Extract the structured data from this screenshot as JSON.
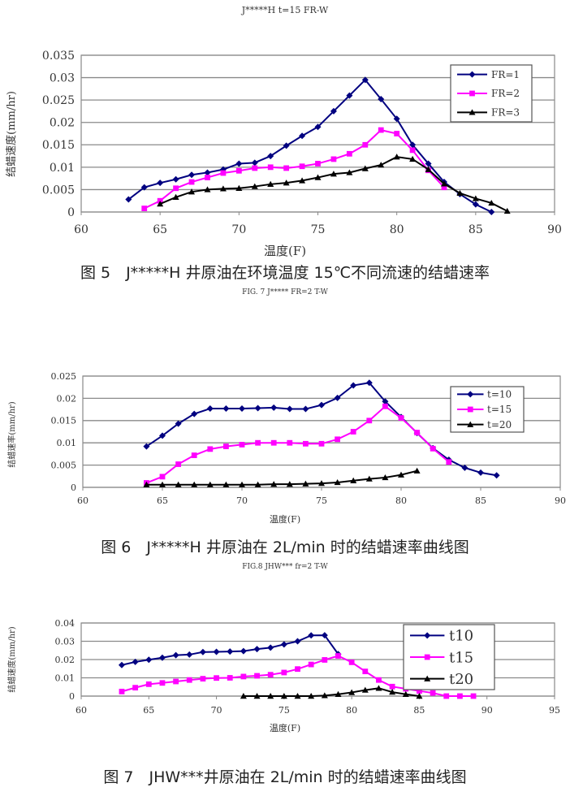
{
  "chart_data": [
    {
      "type": "line",
      "title": "J*****H t=15 FR-W",
      "xlabel": "温度(F)",
      "ylabel": "结蜡速度(mm/hr)",
      "xlim": [
        60,
        90
      ],
      "ylim": [
        0,
        0.035
      ],
      "x_ticks": [
        "60",
        "65",
        "70",
        "75",
        "80",
        "85",
        "90"
      ],
      "y_ticks": [
        "0",
        "0.005",
        "0.01",
        "0.015",
        "0.02",
        "0.025",
        "0.03",
        "0.035"
      ],
      "grid": true,
      "legend": "top-right",
      "caption": "图 5　J*****H 井原油在环境温度 15℃不同流速的结蜡速率",
      "series": [
        {
          "name": "FR=1",
          "color": "#000080",
          "marker": "diamond",
          "x": [
            63,
            64,
            65,
            66,
            67,
            68,
            69,
            70,
            71,
            72,
            73,
            74,
            75,
            76,
            77,
            78,
            79,
            80,
            81,
            82,
            83,
            84,
            85,
            86
          ],
          "y": [
            0.0028,
            0.0055,
            0.0065,
            0.0073,
            0.0083,
            0.0088,
            0.0095,
            0.0108,
            0.011,
            0.0125,
            0.0148,
            0.017,
            0.019,
            0.0225,
            0.026,
            0.0295,
            0.0252,
            0.0208,
            0.015,
            0.0108,
            0.0067,
            0.004,
            0.0017,
            0.0
          ]
        },
        {
          "name": "FR=2",
          "color": "#ff00ff",
          "marker": "square",
          "x": [
            64,
            65,
            66,
            67,
            68,
            69,
            70,
            71,
            72,
            73,
            74,
            75,
            76,
            77,
            78,
            79,
            80,
            81,
            82,
            83
          ],
          "y": [
            0.0008,
            0.0025,
            0.0053,
            0.0067,
            0.0077,
            0.0087,
            0.0092,
            0.0098,
            0.01,
            0.0098,
            0.0102,
            0.0108,
            0.0118,
            0.013,
            0.015,
            0.0183,
            0.0175,
            0.0138,
            0.0093,
            0.0055
          ]
        },
        {
          "name": "FR=3",
          "color": "#000000",
          "marker": "triangle",
          "x": [
            65,
            66,
            67,
            68,
            69,
            70,
            71,
            72,
            73,
            74,
            75,
            76,
            77,
            78,
            79,
            80,
            81,
            82,
            83,
            84,
            85,
            86,
            87
          ],
          "y": [
            0.0018,
            0.0033,
            0.0045,
            0.005,
            0.0052,
            0.0053,
            0.0057,
            0.0062,
            0.0065,
            0.007,
            0.0077,
            0.0085,
            0.0088,
            0.0097,
            0.0105,
            0.0123,
            0.0118,
            0.0095,
            0.0063,
            0.0042,
            0.003,
            0.002,
            0.0002
          ]
        }
      ]
    },
    {
      "type": "line",
      "title": "FIG. 7  J*****  FR=2  T-W",
      "xlabel": "温度(F)",
      "ylabel": "结蜡速率(mm/hr)",
      "xlim": [
        60,
        90
      ],
      "ylim": [
        0,
        0.025
      ],
      "x_ticks": [
        "60",
        "65",
        "70",
        "75",
        "80",
        "85",
        "90"
      ],
      "y_ticks": [
        "0",
        "0.005",
        "0.01",
        "0.015",
        "0.02",
        "0.025"
      ],
      "grid": true,
      "legend": "top-right",
      "caption": "图 6　J*****H 井原油在 2L/min 时的结蜡速率曲线图",
      "series": [
        {
          "name": "t=10",
          "color": "#000080",
          "marker": "diamond",
          "x": [
            64,
            65,
            66,
            67,
            68,
            69,
            70,
            71,
            72,
            73,
            74,
            75,
            76,
            77,
            78,
            79,
            80,
            81,
            82,
            83,
            84,
            85,
            86
          ],
          "y": [
            0.0092,
            0.0116,
            0.0143,
            0.0165,
            0.0177,
            0.0177,
            0.0177,
            0.0178,
            0.0179,
            0.0176,
            0.0176,
            0.0185,
            0.0201,
            0.0229,
            0.0235,
            0.0193,
            0.0158,
            0.0122,
            0.0088,
            0.0062,
            0.0044,
            0.0033,
            0.0027
          ]
        },
        {
          "name": "t=15",
          "color": "#ff00ff",
          "marker": "square",
          "x": [
            64,
            65,
            66,
            67,
            68,
            69,
            70,
            71,
            72,
            73,
            74,
            75,
            76,
            77,
            78,
            79,
            80,
            81,
            82,
            83
          ],
          "y": [
            0.001,
            0.0024,
            0.0052,
            0.0072,
            0.0086,
            0.0092,
            0.0096,
            0.01,
            0.01,
            0.01,
            0.0098,
            0.0098,
            0.0108,
            0.0125,
            0.015,
            0.0182,
            0.0156,
            0.0123,
            0.0087,
            0.0057
          ]
        },
        {
          "name": "t=20",
          "color": "#000000",
          "marker": "triangle",
          "x": [
            64,
            65,
            66,
            67,
            68,
            69,
            70,
            71,
            72,
            73,
            74,
            75,
            76,
            77,
            78,
            79,
            80,
            81
          ],
          "y": [
            0.0006,
            0.0006,
            0.0006,
            0.0006,
            0.0006,
            0.0006,
            0.0006,
            0.0006,
            0.0007,
            0.0007,
            0.0008,
            0.0009,
            0.0011,
            0.0015,
            0.0019,
            0.0022,
            0.0028,
            0.0037
          ]
        }
      ]
    },
    {
      "type": "line",
      "title": "FIG.8 JHW*** fr=2 T-W",
      "xlabel": "温度(F)",
      "ylabel": "结蜡速度(mm/hr)",
      "xlim": [
        60,
        95
      ],
      "ylim": [
        0,
        0.04
      ],
      "x_ticks": [
        "60",
        "65",
        "70",
        "75",
        "80",
        "85",
        "90",
        "95"
      ],
      "y_ticks": [
        "0",
        "0.01",
        "0.02",
        "0.03",
        "0.04"
      ],
      "grid": true,
      "legend": "top-right",
      "caption": "图 7　JHW***井原油在 2L/min 时的结蜡速率曲线图",
      "series": [
        {
          "name": "t10",
          "color": "#000080",
          "marker": "diamond",
          "x": [
            63,
            64,
            65,
            66,
            67,
            68,
            69,
            70,
            71,
            72,
            73,
            74,
            75,
            76,
            77,
            78,
            79
          ],
          "y": [
            0.017,
            0.0187,
            0.0199,
            0.021,
            0.0224,
            0.0227,
            0.0241,
            0.0242,
            0.0244,
            0.0246,
            0.0257,
            0.0265,
            0.0283,
            0.03,
            0.0332,
            0.0333,
            0.023
          ]
        },
        {
          "name": "t15",
          "color": "#ff00ff",
          "marker": "square",
          "x": [
            63,
            64,
            65,
            66,
            67,
            68,
            69,
            70,
            71,
            72,
            73,
            74,
            75,
            76,
            77,
            78,
            79,
            80,
            81,
            82,
            83,
            84,
            85,
            86,
            87,
            88,
            89
          ],
          "y": [
            0.0025,
            0.0046,
            0.0065,
            0.0072,
            0.008,
            0.0088,
            0.0095,
            0.0099,
            0.01,
            0.0107,
            0.0111,
            0.0117,
            0.0129,
            0.0148,
            0.0173,
            0.0198,
            0.022,
            0.0185,
            0.0135,
            0.0088,
            0.0052,
            0.004,
            0.0028,
            0.0017,
            0.0,
            0.0,
            0.0
          ]
        },
        {
          "name": "t20",
          "color": "#000000",
          "marker": "triangle",
          "x": [
            72,
            73,
            74,
            75,
            76,
            77,
            78,
            79,
            80,
            81,
            82,
            83,
            84,
            85
          ],
          "y": [
            0.0,
            0.0,
            0.0,
            0.0,
            0.0,
            0.0,
            0.0003,
            0.001,
            0.002,
            0.0033,
            0.0043,
            0.0022,
            0.001,
            0.0
          ]
        }
      ]
    }
  ]
}
